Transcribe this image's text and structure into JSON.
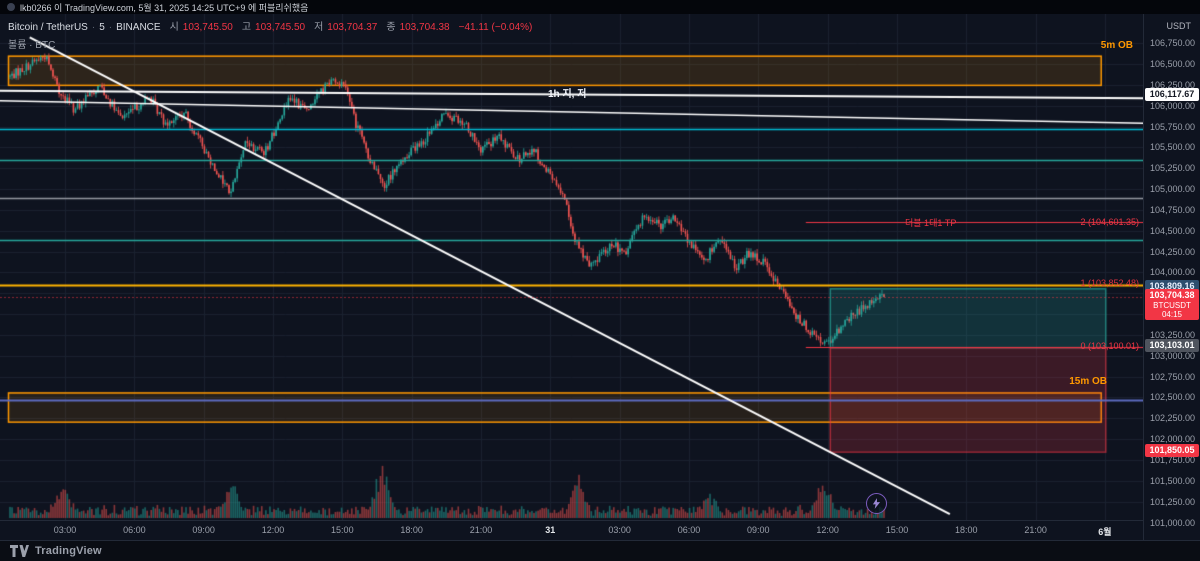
{
  "publish_bar": {
    "text": "lkb0266 이 TradingView.com, 5월 31, 2025 14:25 UTC+9 에 퍼블리쉬했음"
  },
  "legend": {
    "title": "Bitcoin / TetherUS",
    "interval": "5",
    "exchange": "BINANCE",
    "ohlc": {
      "open_label": "시",
      "open": "103,745.50",
      "high_label": "고",
      "high": "103,745.50",
      "low_label": "저",
      "low": "103,704.37",
      "close_label": "종",
      "close": "103,704.38",
      "change": "−41.11 (−0.04%)"
    },
    "volume_row": "볼륨 · BTC"
  },
  "price_axis": {
    "currency": "USDT",
    "ticks": [
      "106,750.00",
      "106,500.00",
      "106,250.00",
      "106,000.00",
      "105,750.00",
      "105,500.00",
      "105,250.00",
      "105,000.00",
      "104,750.00",
      "104,500.00",
      "104,250.00",
      "104,000.00",
      "103,750.00",
      "103,500.00",
      "103,250.00",
      "103,000.00",
      "102,750.00",
      "102,500.00",
      "102,250.00",
      "102,000.00",
      "101,750.00",
      "101,500.00",
      "101,250.00",
      "101,000.00"
    ],
    "special_labels": [
      {
        "id": "trendline-value",
        "price": 106117.67,
        "text": "106,117.67",
        "bg": "#ffffff",
        "fg": "#131722"
      },
      {
        "id": "position-target",
        "price": 103809.16,
        "text": "103,809.16",
        "bg": "#2e4e6e",
        "fg": "#e8f0fe"
      },
      {
        "id": "current-price",
        "price": 103704.38,
        "text": "103,704.38",
        "bg": "#f23645",
        "fg": "#ffffff",
        "sub": [
          "BTCUSDT",
          "04:15"
        ]
      },
      {
        "id": "position-entry",
        "price": 103103.01,
        "text": "103,103.01",
        "bg": "#4f545e",
        "fg": "#ffffff"
      },
      {
        "id": "position-stop",
        "price": 101850.05,
        "text": "101,850.05",
        "bg": "#f23645",
        "fg": "#ffffff"
      }
    ]
  },
  "time_axis": {
    "labels": [
      "03:00",
      "06:00",
      "09:00",
      "12:00",
      "15:00",
      "18:00",
      "21:00",
      "31",
      "03:00",
      "06:00",
      "09:00",
      "12:00",
      "15:00",
      "18:00",
      "21:00",
      "6월"
    ],
    "emphasis": [
      "31",
      "6월"
    ]
  },
  "annotations": {
    "ob_5m_label": "5m OB",
    "ob_15m_label": "15m OB",
    "trendline_label": "1h 지, 저",
    "tp_label": "더블 1대1 TP",
    "fib_2_label": "2 (104,601.35)",
    "fib_1_label": "1 (103,852.48)",
    "fib_0_label": "0 (103,100.01)"
  },
  "footer": {
    "brand": "TradingView"
  },
  "chart_data": {
    "type": "candlestick",
    "symbol": "BTCUSDT",
    "exchange": "BINANCE",
    "interval": "5m",
    "quote_currency": "USDT",
    "visible_price_range": [
      101030,
      107100
    ],
    "current_price": 103704.38,
    "ohlc_last": {
      "open": 103745.5,
      "high": 103745.5,
      "low": 103704.37,
      "close": 103704.38,
      "change": -41.11,
      "change_pct": -0.04
    },
    "price_path": [
      [
        0.0,
        106350
      ],
      [
        0.04,
        106600
      ],
      [
        0.057,
        106150
      ],
      [
        0.074,
        105950
      ],
      [
        0.103,
        106250
      ],
      [
        0.126,
        105850
      ],
      [
        0.16,
        106100
      ],
      [
        0.177,
        105800
      ],
      [
        0.2,
        105900
      ],
      [
        0.229,
        105350
      ],
      [
        0.252,
        104950
      ],
      [
        0.269,
        105550
      ],
      [
        0.292,
        105450
      ],
      [
        0.32,
        106100
      ],
      [
        0.338,
        105950
      ],
      [
        0.366,
        106300
      ],
      [
        0.383,
        106250
      ],
      [
        0.395,
        105800
      ],
      [
        0.412,
        105350
      ],
      [
        0.429,
        105050
      ],
      [
        0.446,
        105350
      ],
      [
        0.475,
        105600
      ],
      [
        0.498,
        105900
      ],
      [
        0.521,
        105800
      ],
      [
        0.538,
        105450
      ],
      [
        0.561,
        105650
      ],
      [
        0.578,
        105350
      ],
      [
        0.601,
        105450
      ],
      [
        0.618,
        105150
      ],
      [
        0.635,
        104900
      ],
      [
        0.646,
        104400
      ],
      [
        0.664,
        104050
      ],
      [
        0.687,
        104350
      ],
      [
        0.704,
        104250
      ],
      [
        0.727,
        104700
      ],
      [
        0.744,
        104550
      ],
      [
        0.761,
        104650
      ],
      [
        0.778,
        104350
      ],
      [
        0.795,
        104150
      ],
      [
        0.812,
        104400
      ],
      [
        0.83,
        104050
      ],
      [
        0.847,
        104250
      ],
      [
        0.864,
        104100
      ],
      [
        0.881,
        103800
      ],
      [
        0.898,
        103500
      ],
      [
        0.915,
        103300
      ],
      [
        0.932,
        103150
      ],
      [
        0.944,
        103250
      ],
      [
        0.961,
        103450
      ],
      [
        0.978,
        103600
      ],
      [
        0.993,
        103720
      ],
      [
        1.0,
        103704
      ]
    ],
    "volume_spikes": [
      {
        "f": 0.06,
        "h": 30
      },
      {
        "f": 0.255,
        "h": 28
      },
      {
        "f": 0.425,
        "h": 55
      },
      {
        "f": 0.65,
        "h": 38
      },
      {
        "f": 0.8,
        "h": 22
      },
      {
        "f": 0.93,
        "h": 34
      }
    ],
    "levels": [
      {
        "kind": "hline",
        "price": 105720,
        "color": "#00bcd4",
        "width": 1.5,
        "x0": 0,
        "x1": 1
      },
      {
        "kind": "hline",
        "price": 105350,
        "color": "#26a69a",
        "width": 1.5,
        "x0": 0,
        "x1": 1
      },
      {
        "kind": "hline",
        "price": 104890,
        "color": "#9598a1",
        "width": 1.5,
        "x0": 0,
        "x1": 1
      },
      {
        "kind": "hline",
        "price": 104390,
        "color": "#26a69a",
        "width": 1.5,
        "x0": 0,
        "x1": 1
      },
      {
        "kind": "hline",
        "price": 103852.48,
        "color": "#ffb300",
        "width": 2,
        "x0": 0,
        "x1": 1
      },
      {
        "kind": "hline",
        "price": 102470,
        "color": "#5c6bc0",
        "width": 2,
        "x0": 0,
        "x1": 1
      },
      {
        "kind": "hline",
        "price": 104601.35,
        "color": "#f23645",
        "width": 1,
        "x0": 0.705,
        "x1": 1
      },
      {
        "kind": "hline",
        "price": 103100.01,
        "color": "#f23645",
        "width": 1,
        "x0": 0.705,
        "x1": 1
      }
    ],
    "boxes": [
      {
        "name": "5m-order-block",
        "p1": 106600,
        "p2": 106250,
        "x0": 0.007,
        "x1": 0.963,
        "stroke": "#ff9800",
        "fill": "rgba(255,152,0,0.13)"
      },
      {
        "name": "15m-order-block",
        "p1": 102560,
        "p2": 102210,
        "x0": 0.007,
        "x1": 0.963,
        "stroke": "#ff9800",
        "fill": "rgba(255,152,0,0.10)"
      },
      {
        "name": "long-position-profit",
        "p1": 103809.16,
        "p2": 103103.01,
        "x0": 0.726,
        "x1": 0.967,
        "stroke": "rgba(38,166,154,0.7)",
        "fill": "rgba(38,166,154,0.22)"
      },
      {
        "name": "long-position-loss",
        "p1": 103103.01,
        "p2": 101850.05,
        "x0": 0.726,
        "x1": 0.967,
        "stroke": "rgba(242,54,69,0.6)",
        "fill": "rgba(242,54,69,0.20)"
      }
    ],
    "trendlines": [
      {
        "name": "downtrend-line",
        "x0": 0.026,
        "p0": 106820,
        "x1": 0.831,
        "p1": 101100,
        "color": "#ffffff",
        "width": 2
      },
      {
        "name": "1h-resistance-a",
        "x0": 0,
        "p0": 106180,
        "x1": 1,
        "p1": 106090,
        "color": "#ffffff",
        "width": 2
      },
      {
        "name": "1h-resistance-b",
        "x0": 0,
        "p0": 106060,
        "x1": 1,
        "p1": 105790,
        "color": "#ffffff",
        "width": 1.5
      }
    ]
  }
}
